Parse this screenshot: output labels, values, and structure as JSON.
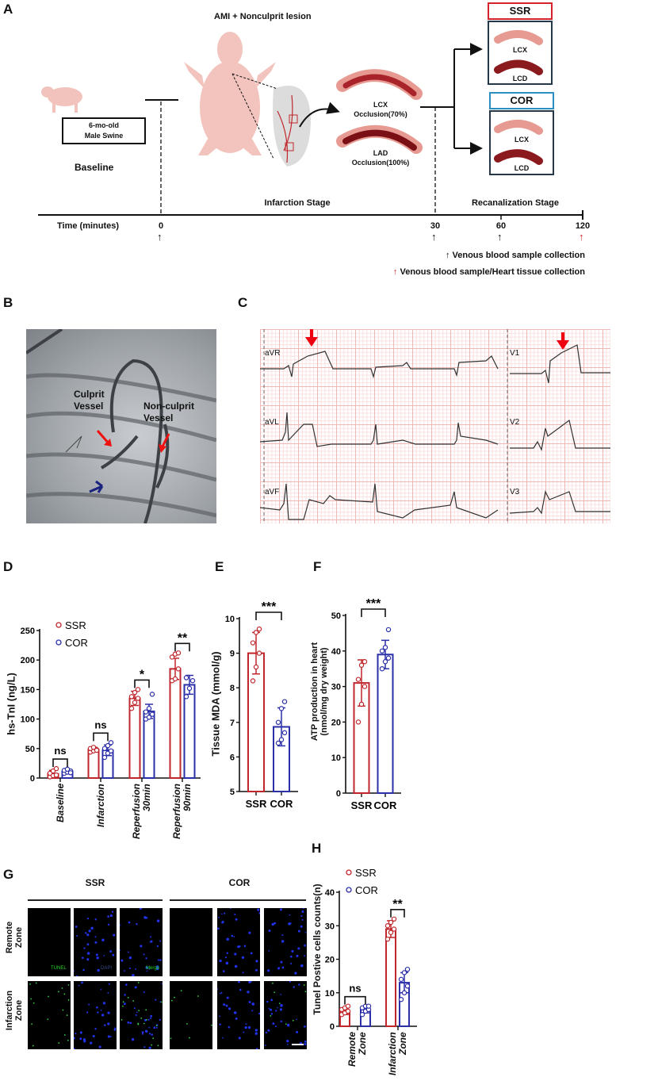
{
  "panels": {
    "A": {
      "label": "A",
      "title": "AMI + Nonculprit lesion",
      "animal_box": [
        "6-mo-old",
        "Male Swine"
      ],
      "baseline": "Baseline",
      "lcx_occlusion": [
        "LCX",
        "Occlusion(70%)"
      ],
      "lad_occlusion": [
        "LAD",
        "Occlusion(100%)"
      ],
      "groups": [
        {
          "name": "SSR",
          "color": "#d3222a",
          "vessels": [
            "LCX",
            "LCD"
          ]
        },
        {
          "name": "COR",
          "color": "#2c8fc0",
          "vessels": [
            "LCX",
            "LCD"
          ]
        }
      ],
      "stages": [
        "Infarction Stage",
        "Recanalization Stage"
      ],
      "time_label": "Time (minutes)",
      "time_ticks": [
        "0",
        "30",
        "60",
        "120"
      ],
      "legend": [
        {
          "symbol": "↑",
          "color": "#111111",
          "text": "Venous blood sample collection"
        },
        {
          "symbol": "↑",
          "color": "#d3222a",
          "text": "Venous blood sample/Heart tissue collection"
        }
      ]
    },
    "B": {
      "label": "B",
      "culprit": [
        "Culprit",
        "Vessel"
      ],
      "nonculprit": [
        "Non-culprit",
        "Vessel"
      ]
    },
    "C": {
      "label": "C",
      "leads": [
        "aVR",
        "aVL",
        "aVF",
        "V1",
        "V2",
        "V3"
      ]
    },
    "D": {
      "label": "D"
    },
    "E": {
      "label": "E"
    },
    "F": {
      "label": "F"
    },
    "G": {
      "label": "G",
      "groups": [
        "SSR",
        "COR"
      ],
      "rows": [
        [
          "Remote",
          "Zone"
        ],
        [
          "Infarction",
          "Zone"
        ]
      ],
      "channels": [
        "TUNEL",
        "DAPI",
        "Merge"
      ]
    },
    "H": {
      "label": "H"
    }
  },
  "colors": {
    "SSR": "#c0272d",
    "COR": "#2b2fa8"
  },
  "chart_data": [
    {
      "id": "D",
      "type": "bar",
      "ylabel": "hs-TnI (ng/L)",
      "categories": [
        [
          "Baseline"
        ],
        [
          "Infarction"
        ],
        [
          "Reperfusion",
          "30min"
        ],
        [
          "Reperfusion",
          "90min"
        ]
      ],
      "ylim": [
        0,
        250
      ],
      "yticks": [
        0,
        50,
        100,
        150,
        200,
        250
      ],
      "legend": [
        "SSR",
        "COR"
      ],
      "legend_position": "top-left",
      "series": [
        {
          "name": "SSR",
          "values": [
            7,
            48,
            135,
            185
          ],
          "sd": [
            6,
            4,
            12,
            18
          ],
          "points": [
            [
              2,
              4,
              5,
              8,
              12,
              16
            ],
            [
              44,
              46,
              48,
              50,
              52,
              47
            ],
            [
              118,
              128,
              135,
              138,
              145,
              150
            ],
            [
              165,
              168,
              185,
              205,
              210,
              212
            ]
          ]
        },
        {
          "name": "COR",
          "values": [
            11,
            47,
            113,
            158
          ],
          "sd": [
            4,
            9,
            12,
            16
          ],
          "points": [
            [
              8,
              10,
              12,
              13,
              15,
              9
            ],
            [
              35,
              42,
              46,
              50,
              55,
              60
            ],
            [
              100,
              103,
              108,
              112,
              118,
              142
            ],
            [
              138,
              152,
              165,
              170
            ]
          ]
        }
      ],
      "significance": [
        "ns",
        "ns",
        "*",
        "**"
      ]
    },
    {
      "id": "E",
      "type": "bar",
      "ylabel": "Tissue MDA (mmol/g)",
      "categories": [
        [
          "SSR"
        ],
        [
          "COR"
        ]
      ],
      "ylim": [
        5,
        10
      ],
      "yticks": [
        5,
        6,
        7,
        8,
        9,
        10
      ],
      "series": [
        {
          "name": "values",
          "values": [
            9.0,
            6.87
          ],
          "sd": [
            0.6,
            0.55
          ],
          "points": [
            [
              8.2,
              8.6,
              9.0,
              9.3,
              9.6,
              9.7
            ],
            [
              6.4,
              6.5,
              6.7,
              7.0,
              7.4,
              7.6
            ]
          ]
        }
      ],
      "significance": [
        "***"
      ]
    },
    {
      "id": "F",
      "type": "bar",
      "ylabel": [
        "ATP production in heart",
        "(nmol/mg dry weight)"
      ],
      "categories": [
        [
          "SSR"
        ],
        [
          "COR"
        ]
      ],
      "ylim": [
        0,
        50
      ],
      "yticks": [
        0,
        10,
        20,
        30,
        40,
        50
      ],
      "series": [
        {
          "name": "values",
          "values": [
            31,
            39
          ],
          "sd": [
            6.5,
            4
          ],
          "points": [
            [
              20,
              25,
              30,
              32,
              36,
              37
            ],
            [
              35,
              37,
              38,
              40,
              41,
              46
            ]
          ]
        }
      ],
      "significance": [
        "***"
      ]
    },
    {
      "id": "H",
      "type": "bar",
      "ylabel": "Tunel Postive cells counts(n)",
      "categories": [
        [
          "Remote",
          "Zone"
        ],
        [
          "Infarction",
          "Zone"
        ]
      ],
      "ylim": [
        0,
        40
      ],
      "yticks": [
        0,
        10,
        20,
        30,
        40
      ],
      "legend": [
        "SSR",
        "COR"
      ],
      "legend_position": "top-left",
      "series": [
        {
          "name": "SSR",
          "values": [
            4.5,
            29
          ],
          "sd": [
            1,
            2.5
          ],
          "points": [
            [
              3.5,
              4,
              4.5,
              5,
              5.5,
              6
            ],
            [
              26,
              28,
              29,
              30,
              31,
              32
            ]
          ]
        },
        {
          "name": "COR",
          "values": [
            5,
            13
          ],
          "sd": [
            1,
            3
          ],
          "points": [
            [
              3.5,
              4.5,
              5,
              5.5,
              6,
              6
            ],
            [
              8,
              10,
              12,
              14,
              16,
              17
            ]
          ]
        }
      ],
      "significance": [
        "ns",
        "**"
      ]
    }
  ]
}
